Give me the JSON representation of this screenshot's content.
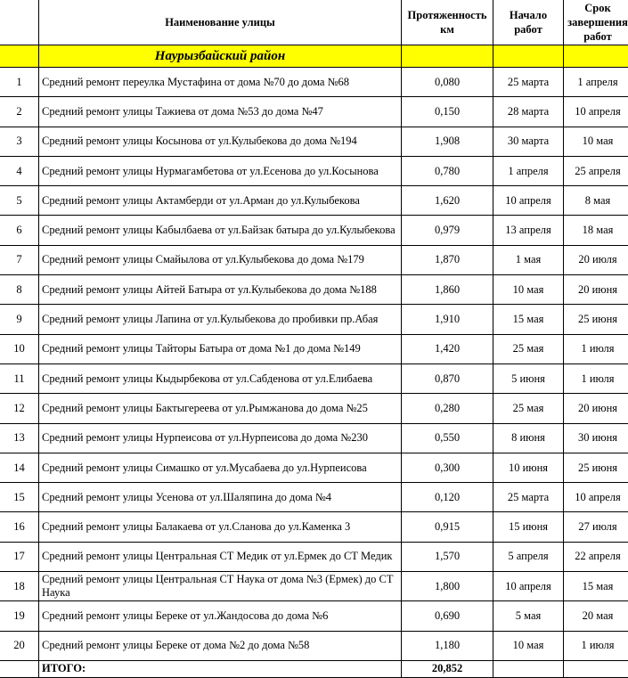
{
  "header": {
    "num": "",
    "name": "Наименование улицы",
    "length": "Протяженность км",
    "start": "Начало работ",
    "end": "Срок завершения работ"
  },
  "district": "Наурызбайский район",
  "rows": [
    {
      "n": "1",
      "name": "Средний ремонт переулка Мустафина от дома №70 до дома №68",
      "len": "0,080",
      "start": "25 марта",
      "end": "1 апреля"
    },
    {
      "n": "2",
      "name": "Средний ремонт улицы Тажиева от дома №53 до дома №47",
      "len": "0,150",
      "start": "28 марта",
      "end": "10 апреля"
    },
    {
      "n": "3",
      "name": "Средний ремонт улицы Косынова от ул.Кулыбекова до дома №194",
      "len": "1,908",
      "start": "30 марта",
      "end": "10 мая"
    },
    {
      "n": "4",
      "name": "Средний ремонт улицы Нурмагамбетова от ул.Есенова до ул.Косынова",
      "len": "0,780",
      "start": "1 апреля",
      "end": "25 апреля"
    },
    {
      "n": "5",
      "name": "Средний ремонт улицы Актамберди от ул.Арман до ул.Кулыбекова",
      "len": "1,620",
      "start": "10 апреля",
      "end": "8 мая"
    },
    {
      "n": "6",
      "name": "Средний ремонт улицы Кабылбаева от ул.Байзак батыра до ул.Кулыбекова",
      "len": "0,979",
      "start": "13 апреля",
      "end": "18 мая"
    },
    {
      "n": "7",
      "name": "Средний ремонт улицы Смайылова от ул.Кулыбекова до дома №179",
      "len": "1,870",
      "start": "1 мая",
      "end": "20 июля"
    },
    {
      "n": "8",
      "name": "Средний ремонт улицы Айтей Батыра от ул.Кулыбекова до дома №188",
      "len": "1,860",
      "start": "10 мая",
      "end": "20 июня"
    },
    {
      "n": "9",
      "name": "Средний ремонт улицы Лапина от ул.Кулыбекова до пробивки пр.Абая",
      "len": "1,910",
      "start": "15 мая",
      "end": "25 июня"
    },
    {
      "n": "10",
      "name": "Средний ремонт улицы Тайторы Батыра от дома №1 до дома №149",
      "len": "1,420",
      "start": "25 мая",
      "end": "1 июля"
    },
    {
      "n": "11",
      "name": "Средний ремонт улицы Кыдырбекова от ул.Сабденова от ул.Елибаева",
      "len": "0,870",
      "start": "5 июня",
      "end": "1 июля"
    },
    {
      "n": "12",
      "name": "Средний ремонт улицы Бактыгереева от ул.Рымжанова до дома №25",
      "len": "0,280",
      "start": "25 мая",
      "end": "20 июня"
    },
    {
      "n": "13",
      "name": "Средний ремонт улицы Нурпеисова от ул.Нурпеисова до дома №230",
      "len": "0,550",
      "start": "8 июня",
      "end": "30 июня"
    },
    {
      "n": "14",
      "name": "Средний ремонт улицы Симашко от ул.Мусабаева до ул.Нурпеисова",
      "len": "0,300",
      "start": "10 июня",
      "end": "25 июня"
    },
    {
      "n": "15",
      "name": "Средний ремонт улицы Усенова от ул.Шаляпина до дома №4",
      "len": "0,120",
      "start": "25 марта",
      "end": "10 апреля"
    },
    {
      "n": "16",
      "name": "Средний ремонт улицы Балакаева от ул.Сланова до ул.Каменка 3",
      "len": "0,915",
      "start": "15 июня",
      "end": "27 июля"
    },
    {
      "n": "17",
      "name": "Средний ремонт улицы Центральная СТ Медик от ул.Ермек до СТ Медик",
      "len": "1,570",
      "start": "5 апреля",
      "end": "22 апреля"
    },
    {
      "n": "18",
      "name": "Средний ремонт улицы Центральная СТ Наука от дома №3 (Ермек) до СТ Наука",
      "len": "1,800",
      "start": "10 апреля",
      "end": "15 мая"
    },
    {
      "n": "19",
      "name": "Средний ремонт улицы Береке от ул.Жандосова до дома №6",
      "len": "0,690",
      "start": "5 мая",
      "end": "20 мая"
    },
    {
      "n": "20",
      "name": "Средний ремонт улицы Береке от дома №2 до дома №58",
      "len": "1,180",
      "start": "10 мая",
      "end": "1 июля"
    }
  ],
  "total": {
    "label": "ИТОГО:",
    "len": "20,852"
  }
}
